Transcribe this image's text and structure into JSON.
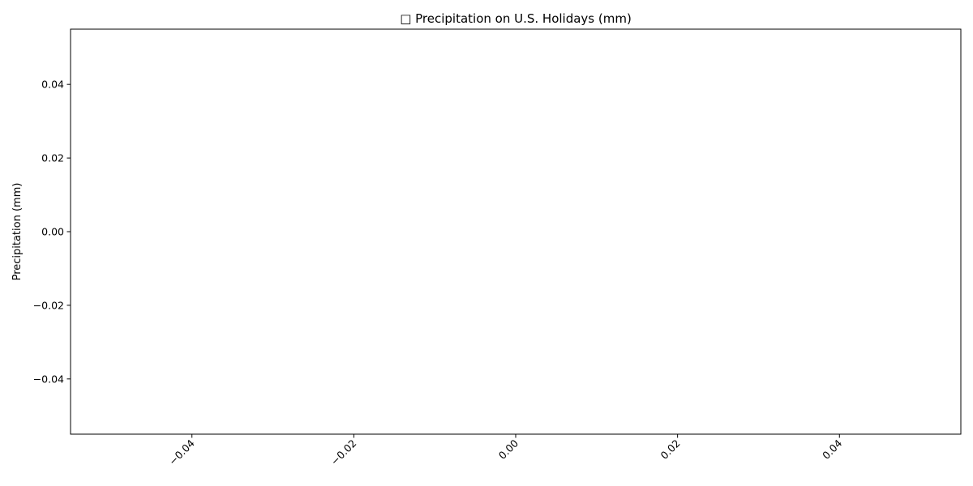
{
  "chart_data": {
    "type": "bar",
    "title": "□ Precipitation on U.S. Holidays (mm)",
    "xlabel": "",
    "ylabel": "Precipitation (mm)",
    "categories": [],
    "values": [],
    "xlim": [
      -0.055,
      0.055
    ],
    "ylim": [
      -0.055,
      0.055
    ],
    "x_ticks": [
      "−0.04",
      "−0.02",
      "0.00",
      "0.02",
      "0.04"
    ],
    "x_tick_values": [
      -0.04,
      -0.02,
      0.0,
      0.02,
      0.04
    ],
    "y_ticks": [
      "0.04",
      "0.02",
      "0.00",
      "−0.02",
      "−0.04"
    ],
    "y_tick_values": [
      0.04,
      0.02,
      0.0,
      -0.02,
      -0.04
    ],
    "x_tick_rotation": 45,
    "grid": false,
    "legend": "none"
  }
}
